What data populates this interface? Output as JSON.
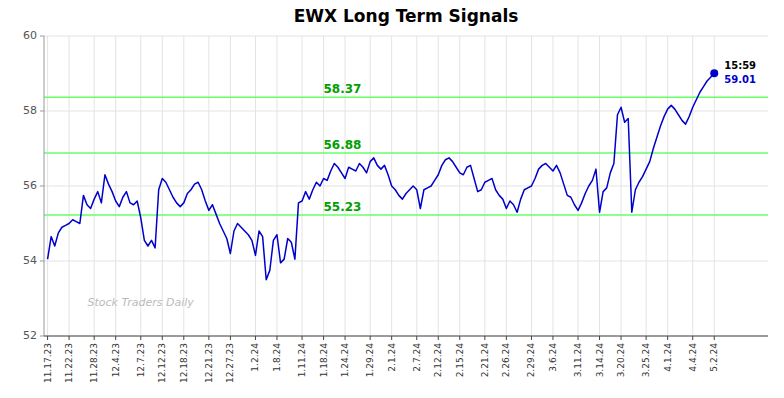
{
  "chart_data": {
    "type": "line",
    "title": "EWX Long Term Signals",
    "color": "#0000cc",
    "grid": true,
    "ylim": [
      52,
      60
    ],
    "yticks": [
      52,
      54,
      56,
      58,
      60
    ],
    "reference_lines": [
      {
        "value": 55.23,
        "label": "55.23",
        "color": "#66ff66"
      },
      {
        "value": 56.88,
        "label": "56.88",
        "color": "#66ff66"
      },
      {
        "value": 58.37,
        "label": "58.37",
        "color": "#66ff66"
      }
    ],
    "annotations": [
      {
        "text": "15:59"
      },
      {
        "text": "59.01"
      }
    ],
    "watermark": "Stock Traders Daily",
    "categories": [
      "11.17.23",
      null,
      null,
      null,
      null,
      null,
      "11.22.23",
      null,
      null,
      null,
      null,
      null,
      null,
      "11.28.23",
      null,
      null,
      null,
      null,
      null,
      "12.4.23",
      null,
      null,
      null,
      null,
      null,
      null,
      "12.7.23",
      null,
      null,
      null,
      null,
      null,
      "12.12.23",
      null,
      null,
      null,
      null,
      null,
      "12.18.23",
      null,
      null,
      null,
      null,
      null,
      null,
      "12.21.23",
      null,
      null,
      null,
      null,
      null,
      "12.27.23",
      null,
      null,
      null,
      null,
      null,
      null,
      "1.2.24",
      null,
      null,
      null,
      null,
      null,
      "1.8.24",
      null,
      null,
      null,
      null,
      null,
      null,
      "1.11.24",
      null,
      null,
      null,
      null,
      null,
      "1.18.24",
      null,
      null,
      null,
      null,
      null,
      "1.24.24",
      null,
      null,
      null,
      null,
      null,
      null,
      "1.29.24",
      null,
      null,
      null,
      null,
      null,
      "2.1.24",
      null,
      null,
      null,
      null,
      null,
      null,
      "2.7.24",
      null,
      null,
      null,
      null,
      null,
      "2.12.24",
      null,
      null,
      null,
      null,
      null,
      "2.15.24",
      null,
      null,
      null,
      null,
      null,
      null,
      "2.21.24",
      null,
      null,
      null,
      null,
      null,
      "2.26.24",
      null,
      null,
      null,
      null,
      null,
      null,
      "2.29.24",
      null,
      null,
      null,
      null,
      null,
      "3.6.24",
      null,
      null,
      null,
      null,
      null,
      null,
      "3.11.24",
      null,
      null,
      null,
      null,
      null,
      "3.14.24",
      null,
      null,
      null,
      null,
      null,
      "3.20.24",
      null,
      null,
      null,
      null,
      null,
      null,
      "3.25.24",
      null,
      null,
      null,
      null,
      null,
      "4.1.24",
      null,
      null,
      null,
      null,
      null,
      null,
      "4.4.24",
      null,
      null,
      null,
      null,
      null,
      "5.2.24"
    ],
    "values": [
      54.05,
      54.65,
      54.4,
      54.75,
      54.9,
      54.95,
      55.0,
      55.1,
      55.05,
      55.0,
      55.75,
      55.5,
      55.4,
      55.65,
      55.85,
      55.55,
      56.3,
      56.05,
      55.85,
      55.6,
      55.45,
      55.7,
      55.85,
      55.55,
      55.5,
      55.6,
      55.15,
      54.55,
      54.4,
      54.55,
      54.35,
      55.9,
      56.2,
      56.1,
      55.9,
      55.7,
      55.55,
      55.45,
      55.55,
      55.8,
      55.9,
      56.05,
      56.1,
      55.9,
      55.6,
      55.35,
      55.5,
      55.25,
      55.0,
      54.8,
      54.6,
      54.2,
      54.8,
      55.0,
      54.9,
      54.8,
      54.7,
      54.55,
      54.15,
      54.8,
      54.65,
      53.5,
      53.75,
      54.55,
      54.7,
      53.95,
      54.05,
      54.6,
      54.5,
      54.05,
      55.55,
      55.6,
      55.85,
      55.65,
      55.9,
      56.1,
      56.0,
      56.2,
      56.15,
      56.4,
      56.6,
      56.5,
      56.35,
      56.2,
      56.5,
      56.45,
      56.4,
      56.6,
      56.5,
      56.35,
      56.65,
      56.75,
      56.55,
      56.45,
      56.55,
      56.3,
      56.0,
      55.9,
      55.75,
      55.65,
      55.8,
      55.9,
      56.0,
      55.9,
      55.4,
      55.9,
      55.95,
      56.0,
      56.15,
      56.3,
      56.55,
      56.7,
      56.75,
      56.65,
      56.5,
      56.35,
      56.3,
      56.5,
      56.55,
      56.2,
      55.85,
      55.9,
      56.1,
      56.15,
      56.2,
      55.9,
      55.75,
      55.65,
      55.4,
      55.6,
      55.5,
      55.3,
      55.65,
      55.9,
      55.95,
      56.0,
      56.2,
      56.45,
      56.55,
      56.6,
      56.5,
      56.4,
      56.55,
      56.35,
      56.05,
      55.75,
      55.7,
      55.5,
      55.35,
      55.55,
      55.8,
      56.0,
      56.15,
      56.45,
      55.3,
      55.85,
      55.95,
      56.35,
      56.6,
      57.9,
      58.1,
      57.7,
      57.8,
      55.3,
      55.9,
      56.1,
      56.25,
      56.45,
      56.65,
      57.0,
      57.3,
      57.6,
      57.85,
      58.05,
      58.15,
      58.05,
      57.9,
      57.75,
      57.65,
      57.85,
      58.1,
      58.3,
      58.5,
      58.65,
      58.8,
      58.9,
      59.01
    ]
  }
}
